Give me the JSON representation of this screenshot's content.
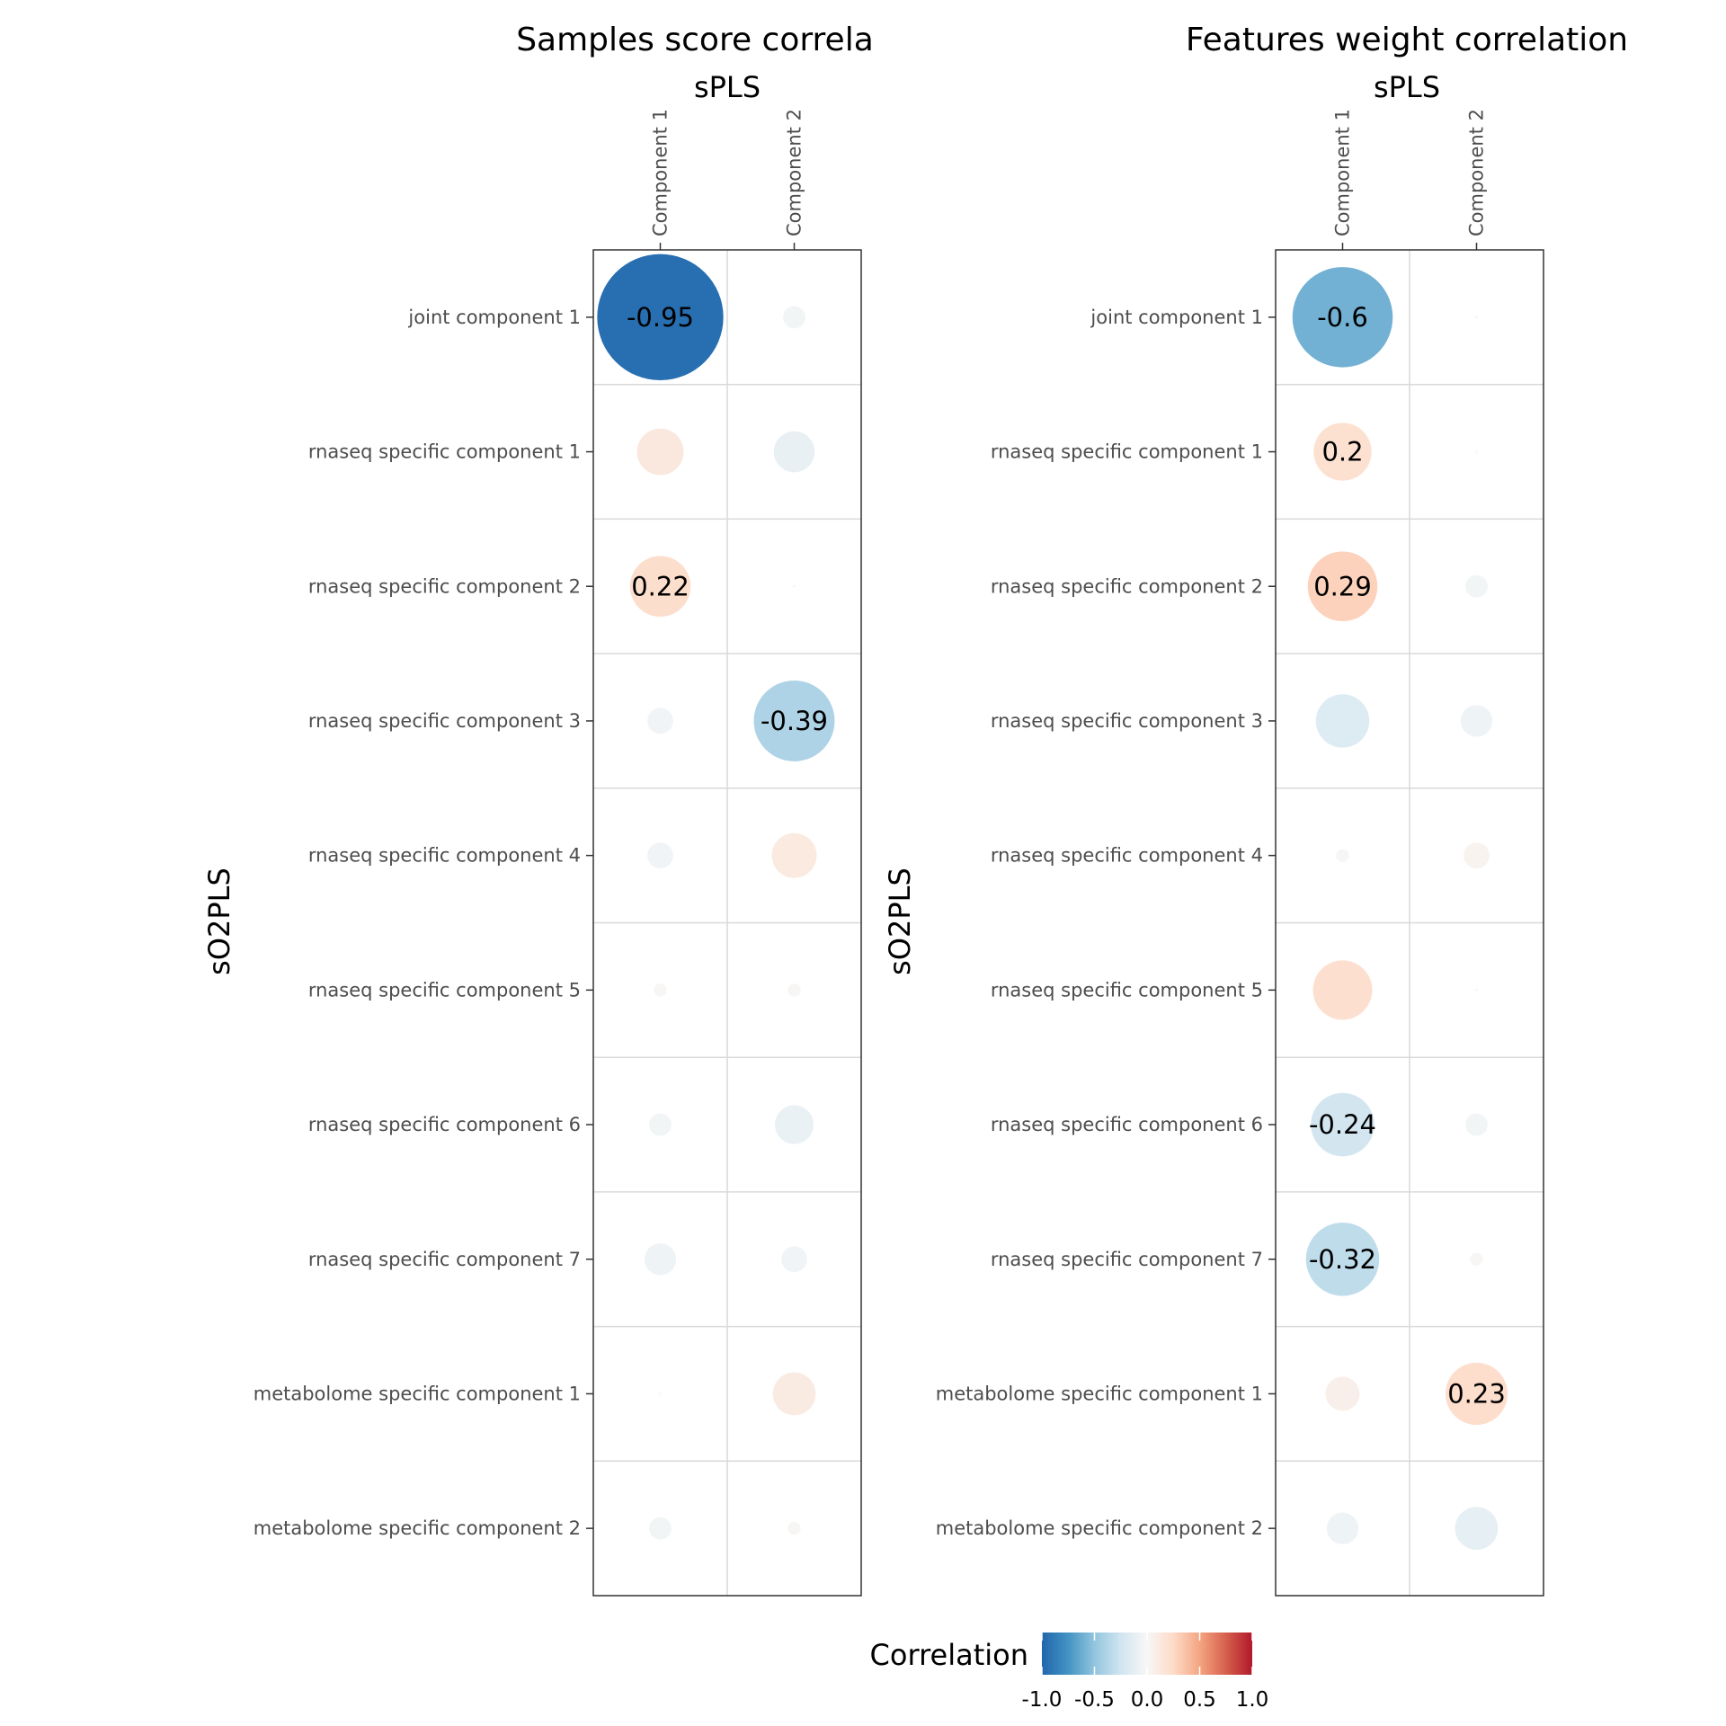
{
  "chart_data": [
    {
      "type": "heatmap",
      "title": "Samples score correla",
      "x_strip": "sPLS",
      "ylabel": "sO2PLS",
      "columns": [
        "Component 1",
        "Component 2"
      ],
      "rows": [
        "joint component 1",
        "rnaseq specific component 1",
        "rnaseq specific component 2",
        "rnaseq specific component 3",
        "rnaseq specific component 4",
        "rnaseq specific component 5",
        "rnaseq specific component 6",
        "rnaseq specific component 7",
        "metabolome specific component 1",
        "metabolome specific component 2"
      ],
      "values": [
        [
          -0.95,
          -0.03
        ],
        [
          0.13,
          -0.1
        ],
        [
          0.22,
          0.0
        ],
        [
          -0.04,
          -0.39
        ],
        [
          -0.04,
          0.12
        ],
        [
          0.01,
          0.01
        ],
        [
          -0.03,
          -0.09
        ],
        [
          -0.06,
          -0.04
        ],
        [
          0.0,
          0.11
        ],
        [
          -0.03,
          0.01
        ]
      ],
      "labels": [
        [
          "-0.95",
          ""
        ],
        [
          "",
          ""
        ],
        [
          "0.22",
          ""
        ],
        [
          "",
          "-0.39"
        ],
        [
          "",
          ""
        ],
        [
          "",
          ""
        ],
        [
          "",
          ""
        ],
        [
          "",
          ""
        ],
        [
          "",
          ""
        ],
        [
          "",
          ""
        ]
      ]
    },
    {
      "type": "heatmap",
      "title": "Features weight correlation",
      "x_strip": "sPLS",
      "ylabel": "sO2PLS",
      "columns": [
        "Component 1",
        "Component 2"
      ],
      "rows": [
        "joint component 1",
        "rnaseq specific component 1",
        "rnaseq specific component 2",
        "rnaseq specific component 3",
        "rnaseq specific component 4",
        "rnaseq specific component 5",
        "rnaseq specific component 6",
        "rnaseq specific component 7",
        "metabolome specific component 1",
        "metabolome specific component 2"
      ],
      "values": [
        [
          -0.6,
          0.0
        ],
        [
          0.2,
          0.0
        ],
        [
          0.29,
          -0.03
        ],
        [
          -0.17,
          -0.06
        ],
        [
          -0.01,
          0.04
        ],
        [
          0.21,
          0.0
        ],
        [
          -0.24,
          -0.03
        ],
        [
          -0.32,
          0.01
        ],
        [
          0.07,
          0.23
        ],
        [
          -0.06,
          -0.11
        ]
      ],
      "labels": [
        [
          "-0.6",
          ""
        ],
        [
          "0.2",
          ""
        ],
        [
          "0.29",
          ""
        ],
        [
          "",
          ""
        ],
        [
          "",
          ""
        ],
        [
          "",
          ""
        ],
        [
          "-0.24",
          ""
        ],
        [
          "-0.32",
          ""
        ],
        [
          "",
          "0.23"
        ],
        [
          "",
          ""
        ]
      ]
    }
  ],
  "legend": {
    "title": "Correlation",
    "ticks": [
      "-1.0",
      "-0.5",
      "0.0",
      "0.5",
      "1.0"
    ],
    "range": [
      -1,
      1
    ],
    "colors": [
      "#2166ac",
      "#4393c3",
      "#92c5de",
      "#d1e5f0",
      "#f7f7f7",
      "#fddbc7",
      "#f4a582",
      "#d6604d",
      "#b2182b"
    ]
  }
}
